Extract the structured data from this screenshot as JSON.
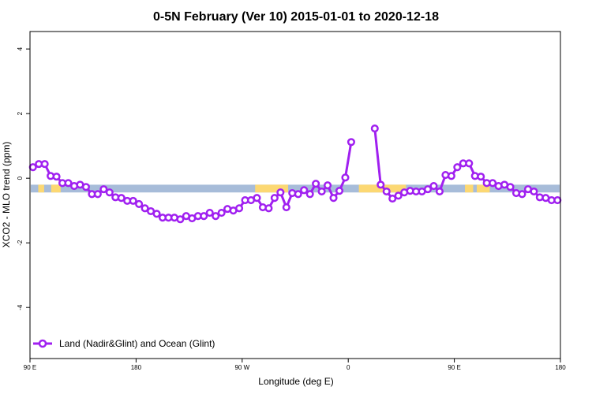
{
  "chart_data": {
    "type": "line",
    "title": "0-5N February (Ver 10)   2015-01-01 to 2020-12-18",
    "xlabel": "Longitude (deg E)",
    "ylabel": "XCO2 - MLO trend (ppm)",
    "xlim": [
      90,
      540
    ],
    "ylim": [
      -5.58,
      4.54
    ],
    "xticks": [
      90,
      180,
      270,
      360,
      450,
      540
    ],
    "xtick_labels": [
      "90 E",
      "180",
      "90 W",
      "0",
      "90 E",
      "180"
    ],
    "yticks": [
      -4,
      -2,
      0,
      2,
      4
    ],
    "ytick_labels": [
      "-4",
      "-2",
      "0",
      "2",
      "4"
    ],
    "legend": {
      "placement": "bottom-left",
      "label": "Land (Nadir&Glint) and Ocean (Glint)"
    },
    "band": {
      "ymin": -0.44,
      "ymax": -0.2,
      "ocean_color": "#a7bcd9",
      "land_color": "#fcd873",
      "land_ranges": [
        [
          97,
          102
        ],
        [
          108,
          116
        ],
        [
          281,
          309
        ],
        [
          369,
          409
        ],
        [
          459,
          466
        ],
        [
          469,
          480
        ]
      ]
    },
    "series": [
      {
        "name": "Land (Nadir&Glint) and Ocean (Glint)",
        "color": "#a020f0",
        "x_start": 92.5,
        "x_step": 5,
        "values": [
          0.34,
          0.44,
          0.44,
          0.07,
          0.05,
          -0.15,
          -0.15,
          -0.24,
          -0.2,
          -0.27,
          -0.49,
          -0.49,
          -0.34,
          -0.44,
          -0.59,
          -0.61,
          -0.7,
          -0.7,
          -0.8,
          -0.93,
          -1.02,
          -1.1,
          -1.22,
          -1.22,
          -1.22,
          -1.27,
          -1.17,
          -1.24,
          -1.17,
          -1.17,
          -1.07,
          -1.17,
          -1.07,
          -0.95,
          -1.0,
          -0.93,
          -0.68,
          -0.68,
          -0.61,
          -0.9,
          -0.93,
          -0.61,
          -0.44,
          -0.9,
          -0.46,
          -0.49,
          -0.37,
          -0.49,
          -0.17,
          -0.41,
          -0.22,
          -0.61,
          -0.39,
          0.02,
          1.12,
          null,
          null,
          null,
          1.54,
          -0.2,
          -0.41,
          -0.63,
          -0.54,
          -0.44,
          -0.39,
          -0.41,
          -0.41,
          -0.34,
          -0.24,
          -0.41,
          0.1,
          0.07,
          0.34,
          0.46,
          0.46,
          0.07,
          0.05,
          -0.15,
          -0.15,
          -0.24,
          -0.2,
          -0.27,
          -0.46,
          -0.49,
          -0.34,
          -0.41,
          -0.59,
          -0.61,
          -0.68,
          -0.68
        ]
      }
    ]
  }
}
